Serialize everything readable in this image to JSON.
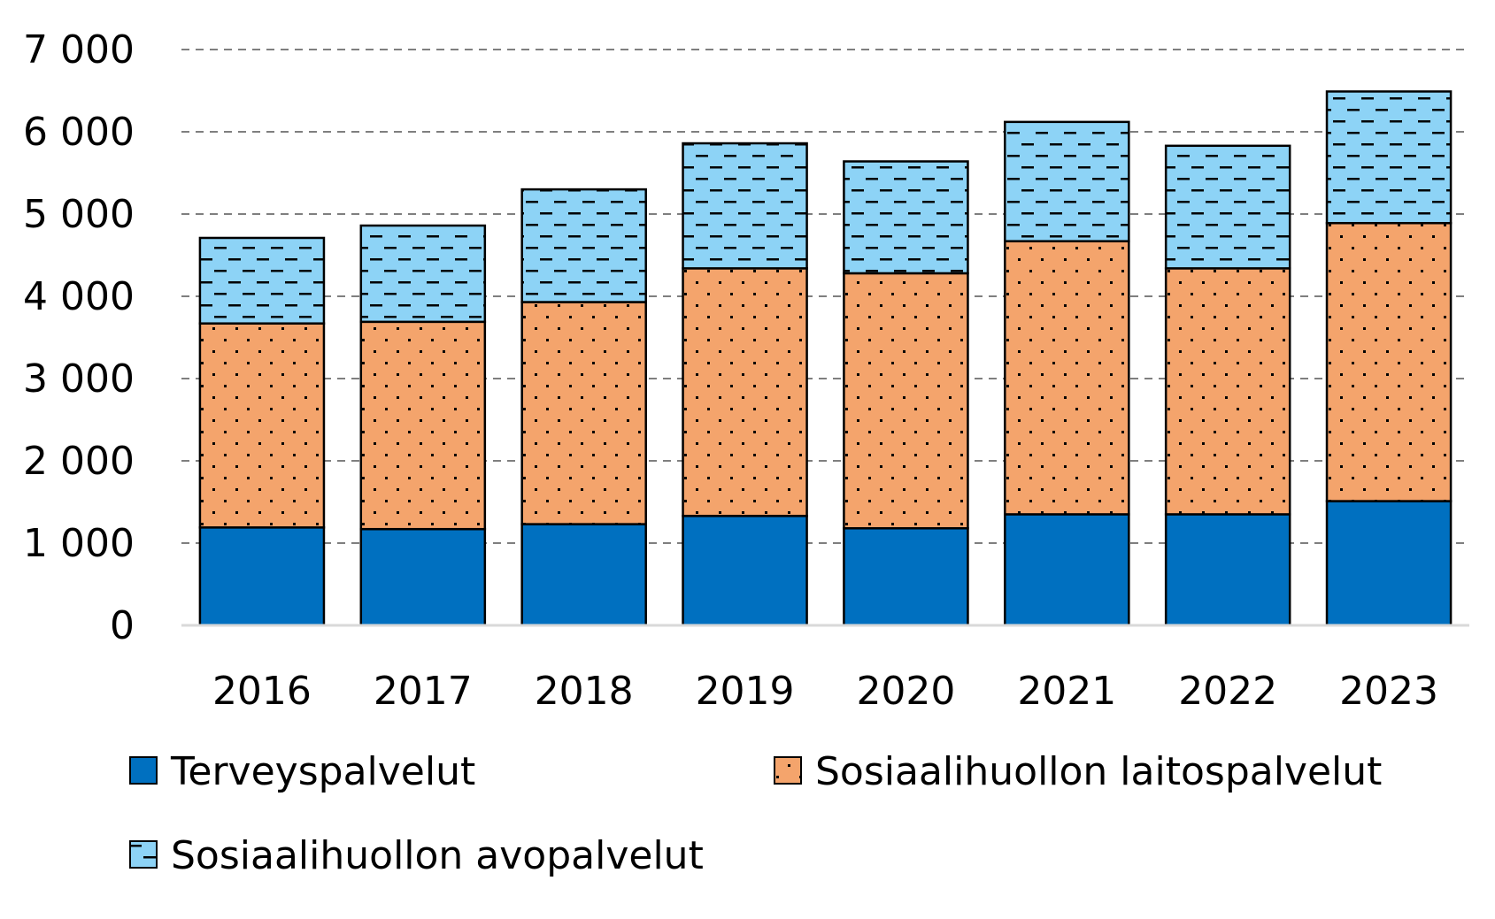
{
  "chart_data": {
    "type": "bar",
    "stacked": true,
    "title": "",
    "xlabel": "",
    "ylabel": "",
    "categories": [
      "2016",
      "2017",
      "2018",
      "2019",
      "2020",
      "2021",
      "2022",
      "2023"
    ],
    "ylim": [
      0,
      7000
    ],
    "y_ticks": [
      0,
      1000,
      2000,
      3000,
      4000,
      5000,
      6000,
      7000
    ],
    "y_tick_labels": [
      "0",
      "1 000",
      "2 000",
      "3 000",
      "4 000",
      "5 000",
      "6 000",
      "7 000"
    ],
    "grid": true,
    "legend_position": "bottom",
    "series": [
      {
        "name": "Terveyspalvelut",
        "color": "#0070c0",
        "pattern": "solid",
        "values": [
          1190,
          1170,
          1230,
          1330,
          1180,
          1350,
          1350,
          1510
        ]
      },
      {
        "name": "Sosiaalihuollon laitospalvelut",
        "color": "#f4a46c",
        "pattern": "dots",
        "values": [
          2480,
          2520,
          2700,
          3010,
          3100,
          3320,
          2990,
          3380
        ]
      },
      {
        "name": "Sosiaalihuollon avopalvelut",
        "color": "#8dd3f6",
        "pattern": "dashes",
        "values": [
          1040,
          1170,
          1370,
          1520,
          1360,
          1450,
          1490,
          1600
        ]
      }
    ]
  }
}
